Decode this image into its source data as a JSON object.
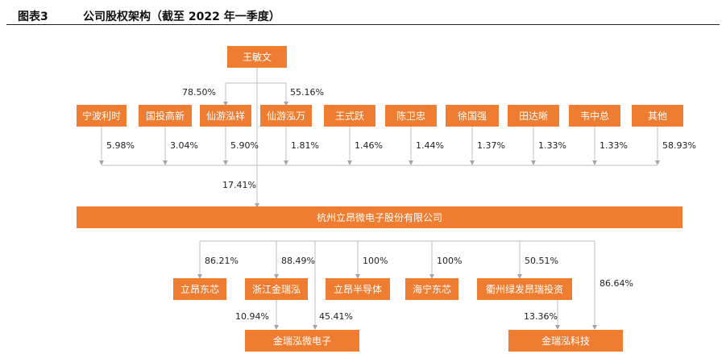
{
  "header": {
    "figure_number": "图表3",
    "title": "公司股权架构（截至 2022 年一季度）"
  },
  "colors": {
    "box": "#EE7D31",
    "line": "#BFBFBF",
    "arrow": "#A6A6A6",
    "text": "#222222"
  },
  "nodes": {
    "top": "王敏文",
    "row1": [
      "宁波利时",
      "国投高新",
      "仙游泓祥",
      "仙游泓万",
      "王式跃",
      "陈卫忠",
      "徐国强",
      "田达晰",
      "韦中总",
      "其他"
    ],
    "company": "杭州立昂微电子股份有限公司",
    "subs": [
      "立昂东芯",
      "浙江金瑞泓",
      "立昂半导体",
      "海宁东芯",
      "衢州绿发昂瑞投资"
    ],
    "bottom": [
      "金瑞泓微电子",
      "金瑞泓科技"
    ]
  },
  "percents": {
    "top_to_hongxiang": "78.50%",
    "top_to_hongwan": "55.16%",
    "row1": [
      "5.98%",
      "3.04%",
      "5.90%",
      "1.81%",
      "1.46%",
      "1.44%",
      "1.37%",
      "1.33%",
      "1.33%",
      "58.93%"
    ],
    "direct": "17.41%",
    "subs": [
      "86.21%",
      "88.49%",
      "100%",
      "100%",
      "50.51%"
    ],
    "company_to_keji": "86.64%",
    "zhejiang_to_weidianzi": "10.94%",
    "company_to_weidianzi": "45.41%",
    "quzhou_to_keji": "13.36%"
  }
}
